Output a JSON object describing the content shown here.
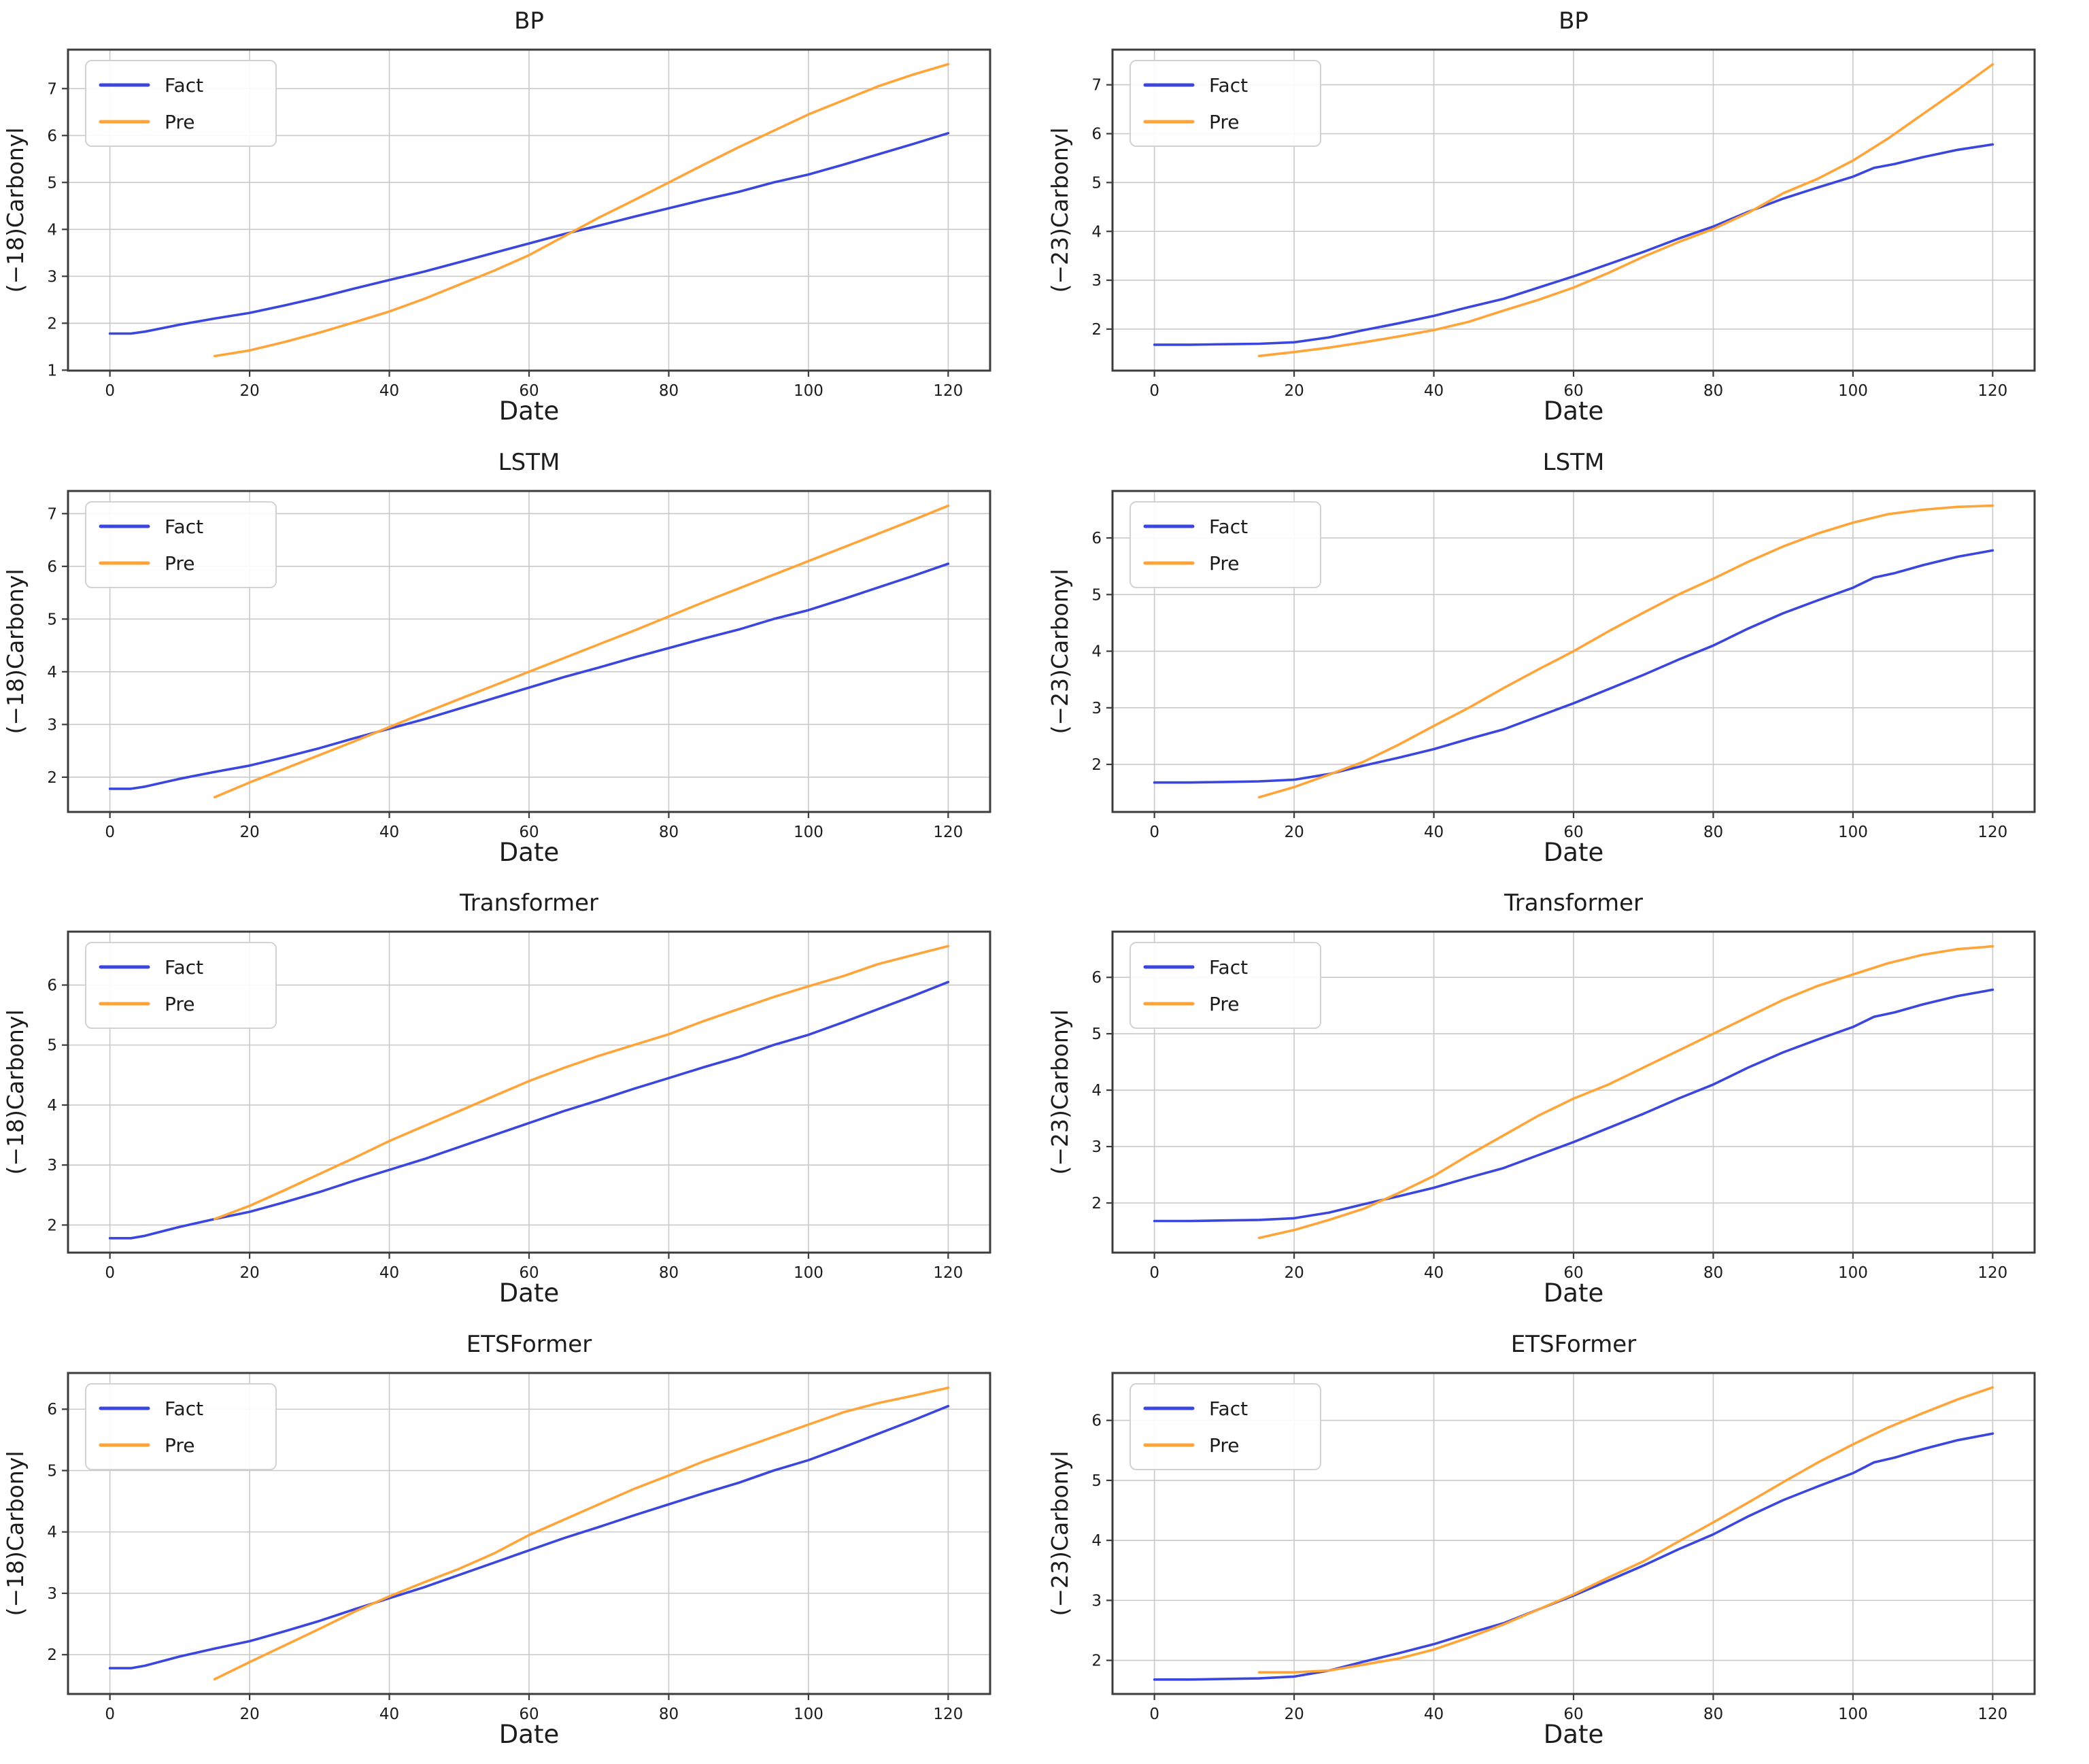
{
  "page": {
    "background": "#ffffff",
    "rows": [
      "BP",
      "LSTM",
      "Transformer",
      "ETSFormer"
    ],
    "columns": [
      "(−18)Carbonyl",
      "(−23)Carbonyl"
    ]
  },
  "style": {
    "fact_color": "#3a46dd",
    "pre_color": "#ffa438",
    "grid_color": "#c9c9c9",
    "spine_color": "#3c3c3c",
    "text_color": "#1c1c1c",
    "legend_border": "#d2d2d2",
    "legend_background": "#ffffff"
  },
  "legend": {
    "items": [
      {
        "label": "Fact",
        "color_key": "fact_color"
      },
      {
        "label": "Pre",
        "color_key": "pre_color"
      }
    ],
    "position": "upper-left"
  },
  "chart_data": [
    {
      "id": "bp-18",
      "type": "line",
      "title": "BP",
      "xlabel": "Date",
      "ylabel": "(−18)Carbonyl",
      "xlim": [
        -6,
        126
      ],
      "x_ticks": [
        0,
        20,
        40,
        60,
        80,
        100,
        120
      ],
      "ylim": [
        0.99,
        7.83
      ],
      "y_ticks": [
        1,
        2,
        3,
        4,
        5,
        6,
        7
      ],
      "grid": true,
      "series": [
        {
          "name": "Fact",
          "x": [
            0,
            3,
            5,
            10,
            15,
            20,
            25,
            30,
            35,
            40,
            45,
            50,
            55,
            60,
            65,
            70,
            75,
            80,
            85,
            90,
            95,
            100,
            105,
            110,
            115,
            120
          ],
          "y": [
            1.78,
            1.78,
            1.82,
            1.97,
            2.1,
            2.22,
            2.38,
            2.55,
            2.74,
            2.92,
            3.1,
            3.3,
            3.5,
            3.7,
            3.9,
            4.08,
            4.27,
            4.45,
            4.63,
            4.8,
            5.0,
            5.17,
            5.38,
            5.6,
            5.82,
            6.05
          ]
        },
        {
          "name": "Pre",
          "x": [
            15,
            20,
            25,
            30,
            35,
            40,
            45,
            50,
            55,
            60,
            65,
            70,
            75,
            80,
            85,
            90,
            95,
            100,
            105,
            110,
            115,
            120
          ],
          "y": [
            1.3,
            1.42,
            1.6,
            1.8,
            2.02,
            2.25,
            2.52,
            2.82,
            3.12,
            3.45,
            3.85,
            4.25,
            4.62,
            5.0,
            5.38,
            5.75,
            6.1,
            6.45,
            6.75,
            7.05,
            7.3,
            7.52
          ]
        }
      ]
    },
    {
      "id": "bp-23",
      "type": "line",
      "title": "BP",
      "xlabel": "Date",
      "ylabel": "(−23)Carbonyl",
      "xlim": [
        -6,
        126
      ],
      "x_ticks": [
        0,
        20,
        40,
        60,
        80,
        100,
        120
      ],
      "ylim": [
        1.15,
        7.72
      ],
      "y_ticks": [
        2,
        3,
        4,
        5,
        6,
        7
      ],
      "grid": true,
      "series": [
        {
          "name": "Fact",
          "x": [
            0,
            5,
            10,
            15,
            20,
            25,
            30,
            35,
            40,
            45,
            50,
            55,
            60,
            65,
            70,
            75,
            80,
            85,
            90,
            95,
            100,
            103,
            106,
            110,
            115,
            120
          ],
          "y": [
            1.68,
            1.68,
            1.69,
            1.7,
            1.73,
            1.83,
            1.98,
            2.12,
            2.27,
            2.45,
            2.62,
            2.85,
            3.08,
            3.33,
            3.58,
            3.85,
            4.1,
            4.4,
            4.67,
            4.9,
            5.12,
            5.3,
            5.38,
            5.52,
            5.67,
            5.78
          ]
        },
        {
          "name": "Pre",
          "x": [
            15,
            20,
            25,
            30,
            35,
            40,
            45,
            50,
            55,
            60,
            65,
            70,
            75,
            80,
            85,
            90,
            95,
            100,
            105,
            110,
            115,
            120
          ],
          "y": [
            1.45,
            1.53,
            1.62,
            1.73,
            1.85,
            1.98,
            2.15,
            2.38,
            2.6,
            2.85,
            3.15,
            3.48,
            3.78,
            4.05,
            4.38,
            4.78,
            5.08,
            5.45,
            5.9,
            6.4,
            6.9,
            7.42
          ]
        }
      ]
    },
    {
      "id": "lstm-18",
      "type": "line",
      "title": "LSTM",
      "xlabel": "Date",
      "ylabel": "(−18)Carbonyl",
      "xlim": [
        -6,
        126
      ],
      "x_ticks": [
        0,
        20,
        40,
        60,
        80,
        100,
        120
      ],
      "ylim": [
        1.34,
        7.43
      ],
      "y_ticks": [
        2,
        3,
        4,
        5,
        6,
        7
      ],
      "grid": true,
      "series": [
        {
          "name": "Fact",
          "x": [
            0,
            3,
            5,
            10,
            15,
            20,
            25,
            30,
            35,
            40,
            45,
            50,
            55,
            60,
            65,
            70,
            75,
            80,
            85,
            90,
            95,
            100,
            105,
            110,
            115,
            120
          ],
          "y": [
            1.78,
            1.78,
            1.82,
            1.97,
            2.1,
            2.22,
            2.38,
            2.55,
            2.74,
            2.92,
            3.1,
            3.3,
            3.5,
            3.7,
            3.9,
            4.08,
            4.27,
            4.45,
            4.63,
            4.8,
            5.0,
            5.17,
            5.38,
            5.6,
            5.82,
            6.05
          ]
        },
        {
          "name": "Pre",
          "x": [
            15,
            20,
            25,
            30,
            35,
            40,
            45,
            50,
            55,
            60,
            65,
            70,
            75,
            80,
            85,
            90,
            95,
            100,
            105,
            110,
            115,
            120
          ],
          "y": [
            1.62,
            1.9,
            2.16,
            2.42,
            2.68,
            2.95,
            3.22,
            3.48,
            3.74,
            4.0,
            4.26,
            4.52,
            4.78,
            5.05,
            5.32,
            5.58,
            5.84,
            6.1,
            6.36,
            6.62,
            6.88,
            7.15
          ]
        }
      ]
    },
    {
      "id": "lstm-23",
      "type": "line",
      "title": "LSTM",
      "xlabel": "Date",
      "ylabel": "(−23)Carbonyl",
      "xlim": [
        -6,
        126
      ],
      "x_ticks": [
        0,
        20,
        40,
        60,
        80,
        100,
        120
      ],
      "ylim": [
        1.16,
        6.83
      ],
      "y_ticks": [
        2,
        3,
        4,
        5,
        6
      ],
      "grid": true,
      "series": [
        {
          "name": "Fact",
          "x": [
            0,
            5,
            10,
            15,
            20,
            25,
            30,
            35,
            40,
            45,
            50,
            55,
            60,
            65,
            70,
            75,
            80,
            85,
            90,
            95,
            100,
            103,
            106,
            110,
            115,
            120
          ],
          "y": [
            1.68,
            1.68,
            1.69,
            1.7,
            1.73,
            1.83,
            1.98,
            2.12,
            2.27,
            2.45,
            2.62,
            2.85,
            3.08,
            3.33,
            3.58,
            3.85,
            4.1,
            4.4,
            4.67,
            4.9,
            5.12,
            5.3,
            5.38,
            5.52,
            5.67,
            5.78
          ]
        },
        {
          "name": "Pre",
          "x": [
            15,
            20,
            25,
            30,
            35,
            40,
            45,
            50,
            55,
            60,
            65,
            70,
            75,
            80,
            85,
            90,
            95,
            100,
            105,
            110,
            115,
            120
          ],
          "y": [
            1.42,
            1.6,
            1.82,
            2.05,
            2.35,
            2.68,
            3.0,
            3.35,
            3.68,
            4.0,
            4.35,
            4.68,
            5.0,
            5.28,
            5.58,
            5.85,
            6.08,
            6.27,
            6.42,
            6.5,
            6.55,
            6.57
          ]
        }
      ]
    },
    {
      "id": "transformer-18",
      "type": "line",
      "title": "Transformer",
      "xlabel": "Date",
      "ylabel": "(−18)Carbonyl",
      "xlim": [
        -6,
        126
      ],
      "x_ticks": [
        0,
        20,
        40,
        60,
        80,
        100,
        120
      ],
      "ylim": [
        1.54,
        6.89
      ],
      "y_ticks": [
        2,
        3,
        4,
        5,
        6
      ],
      "grid": true,
      "series": [
        {
          "name": "Fact",
          "x": [
            0,
            3,
            5,
            10,
            15,
            20,
            25,
            30,
            35,
            40,
            45,
            50,
            55,
            60,
            65,
            70,
            75,
            80,
            85,
            90,
            95,
            100,
            105,
            110,
            115,
            120
          ],
          "y": [
            1.78,
            1.78,
            1.82,
            1.97,
            2.1,
            2.22,
            2.38,
            2.55,
            2.74,
            2.92,
            3.1,
            3.3,
            3.5,
            3.7,
            3.9,
            4.08,
            4.27,
            4.45,
            4.63,
            4.8,
            5.0,
            5.17,
            5.38,
            5.6,
            5.82,
            6.05
          ]
        },
        {
          "name": "Pre",
          "x": [
            15,
            20,
            25,
            30,
            35,
            40,
            45,
            50,
            55,
            60,
            65,
            70,
            75,
            80,
            85,
            90,
            95,
            100,
            105,
            110,
            115,
            120
          ],
          "y": [
            2.1,
            2.32,
            2.58,
            2.85,
            3.12,
            3.4,
            3.65,
            3.9,
            4.15,
            4.4,
            4.62,
            4.82,
            5.0,
            5.18,
            5.4,
            5.6,
            5.8,
            5.98,
            6.15,
            6.35,
            6.5,
            6.65
          ]
        }
      ]
    },
    {
      "id": "transformer-23",
      "type": "line",
      "title": "Transformer",
      "xlabel": "Date",
      "ylabel": "(−23)Carbonyl",
      "xlim": [
        -6,
        126
      ],
      "x_ticks": [
        0,
        20,
        40,
        60,
        80,
        100,
        120
      ],
      "ylim": [
        1.12,
        6.81
      ],
      "y_ticks": [
        2,
        3,
        4,
        5,
        6
      ],
      "grid": true,
      "series": [
        {
          "name": "Fact",
          "x": [
            0,
            5,
            10,
            15,
            20,
            25,
            30,
            35,
            40,
            45,
            50,
            55,
            60,
            65,
            70,
            75,
            80,
            85,
            90,
            95,
            100,
            103,
            106,
            110,
            115,
            120
          ],
          "y": [
            1.68,
            1.68,
            1.69,
            1.7,
            1.73,
            1.83,
            1.98,
            2.12,
            2.27,
            2.45,
            2.62,
            2.85,
            3.08,
            3.33,
            3.58,
            3.85,
            4.1,
            4.4,
            4.67,
            4.9,
            5.12,
            5.3,
            5.38,
            5.52,
            5.67,
            5.78
          ]
        },
        {
          "name": "Pre",
          "x": [
            15,
            20,
            25,
            30,
            35,
            40,
            45,
            50,
            55,
            60,
            65,
            70,
            75,
            80,
            85,
            90,
            95,
            100,
            105,
            110,
            115,
            120
          ],
          "y": [
            1.38,
            1.52,
            1.7,
            1.9,
            2.18,
            2.48,
            2.85,
            3.2,
            3.55,
            3.85,
            4.1,
            4.4,
            4.7,
            5.0,
            5.3,
            5.6,
            5.85,
            6.05,
            6.25,
            6.4,
            6.5,
            6.55
          ]
        }
      ]
    },
    {
      "id": "etsformer-18",
      "type": "line",
      "title": "ETSFormer",
      "xlabel": "Date",
      "ylabel": "(−18)Carbonyl",
      "xlim": [
        -6,
        126
      ],
      "x_ticks": [
        0,
        20,
        40,
        60,
        80,
        100,
        120
      ],
      "ylim": [
        1.36,
        6.59
      ],
      "y_ticks": [
        2,
        3,
        4,
        5,
        6
      ],
      "grid": true,
      "series": [
        {
          "name": "Fact",
          "x": [
            0,
            3,
            5,
            10,
            15,
            20,
            25,
            30,
            35,
            40,
            45,
            50,
            55,
            60,
            65,
            70,
            75,
            80,
            85,
            90,
            95,
            100,
            105,
            110,
            115,
            120
          ],
          "y": [
            1.78,
            1.78,
            1.82,
            1.97,
            2.1,
            2.22,
            2.38,
            2.55,
            2.74,
            2.92,
            3.1,
            3.3,
            3.5,
            3.7,
            3.9,
            4.08,
            4.27,
            4.45,
            4.63,
            4.8,
            5.0,
            5.17,
            5.38,
            5.6,
            5.82,
            6.05
          ]
        },
        {
          "name": "Pre",
          "x": [
            15,
            20,
            25,
            30,
            35,
            40,
            45,
            50,
            55,
            60,
            65,
            70,
            75,
            80,
            85,
            90,
            95,
            100,
            105,
            110,
            115,
            120
          ],
          "y": [
            1.6,
            1.88,
            2.15,
            2.42,
            2.7,
            2.95,
            3.18,
            3.4,
            3.65,
            3.95,
            4.2,
            4.45,
            4.7,
            4.92,
            5.15,
            5.35,
            5.55,
            5.75,
            5.95,
            6.1,
            6.22,
            6.35
          ]
        }
      ]
    },
    {
      "id": "etsformer-23",
      "type": "line",
      "title": "ETSFormer",
      "xlabel": "Date",
      "ylabel": "(−23)Carbonyl",
      "xlim": [
        -6,
        126
      ],
      "x_ticks": [
        0,
        20,
        40,
        60,
        80,
        100,
        120
      ],
      "ylim": [
        1.44,
        6.79
      ],
      "y_ticks": [
        2,
        3,
        4,
        5,
        6
      ],
      "grid": true,
      "series": [
        {
          "name": "Fact",
          "x": [
            0,
            5,
            10,
            15,
            20,
            25,
            30,
            35,
            40,
            45,
            50,
            55,
            60,
            65,
            70,
            75,
            80,
            85,
            90,
            95,
            100,
            103,
            106,
            110,
            115,
            120
          ],
          "y": [
            1.68,
            1.68,
            1.69,
            1.7,
            1.73,
            1.83,
            1.98,
            2.12,
            2.27,
            2.45,
            2.62,
            2.85,
            3.08,
            3.33,
            3.58,
            3.85,
            4.1,
            4.4,
            4.67,
            4.9,
            5.12,
            5.3,
            5.38,
            5.52,
            5.67,
            5.78
          ]
        },
        {
          "name": "Pre",
          "x": [
            15,
            20,
            25,
            30,
            35,
            40,
            45,
            50,
            55,
            60,
            65,
            70,
            75,
            80,
            85,
            90,
            95,
            100,
            105,
            110,
            115,
            120
          ],
          "y": [
            1.8,
            1.8,
            1.83,
            1.93,
            2.03,
            2.18,
            2.38,
            2.6,
            2.85,
            3.1,
            3.38,
            3.65,
            3.98,
            4.3,
            4.63,
            4.97,
            5.3,
            5.6,
            5.88,
            6.12,
            6.35,
            6.55
          ]
        }
      ]
    }
  ]
}
